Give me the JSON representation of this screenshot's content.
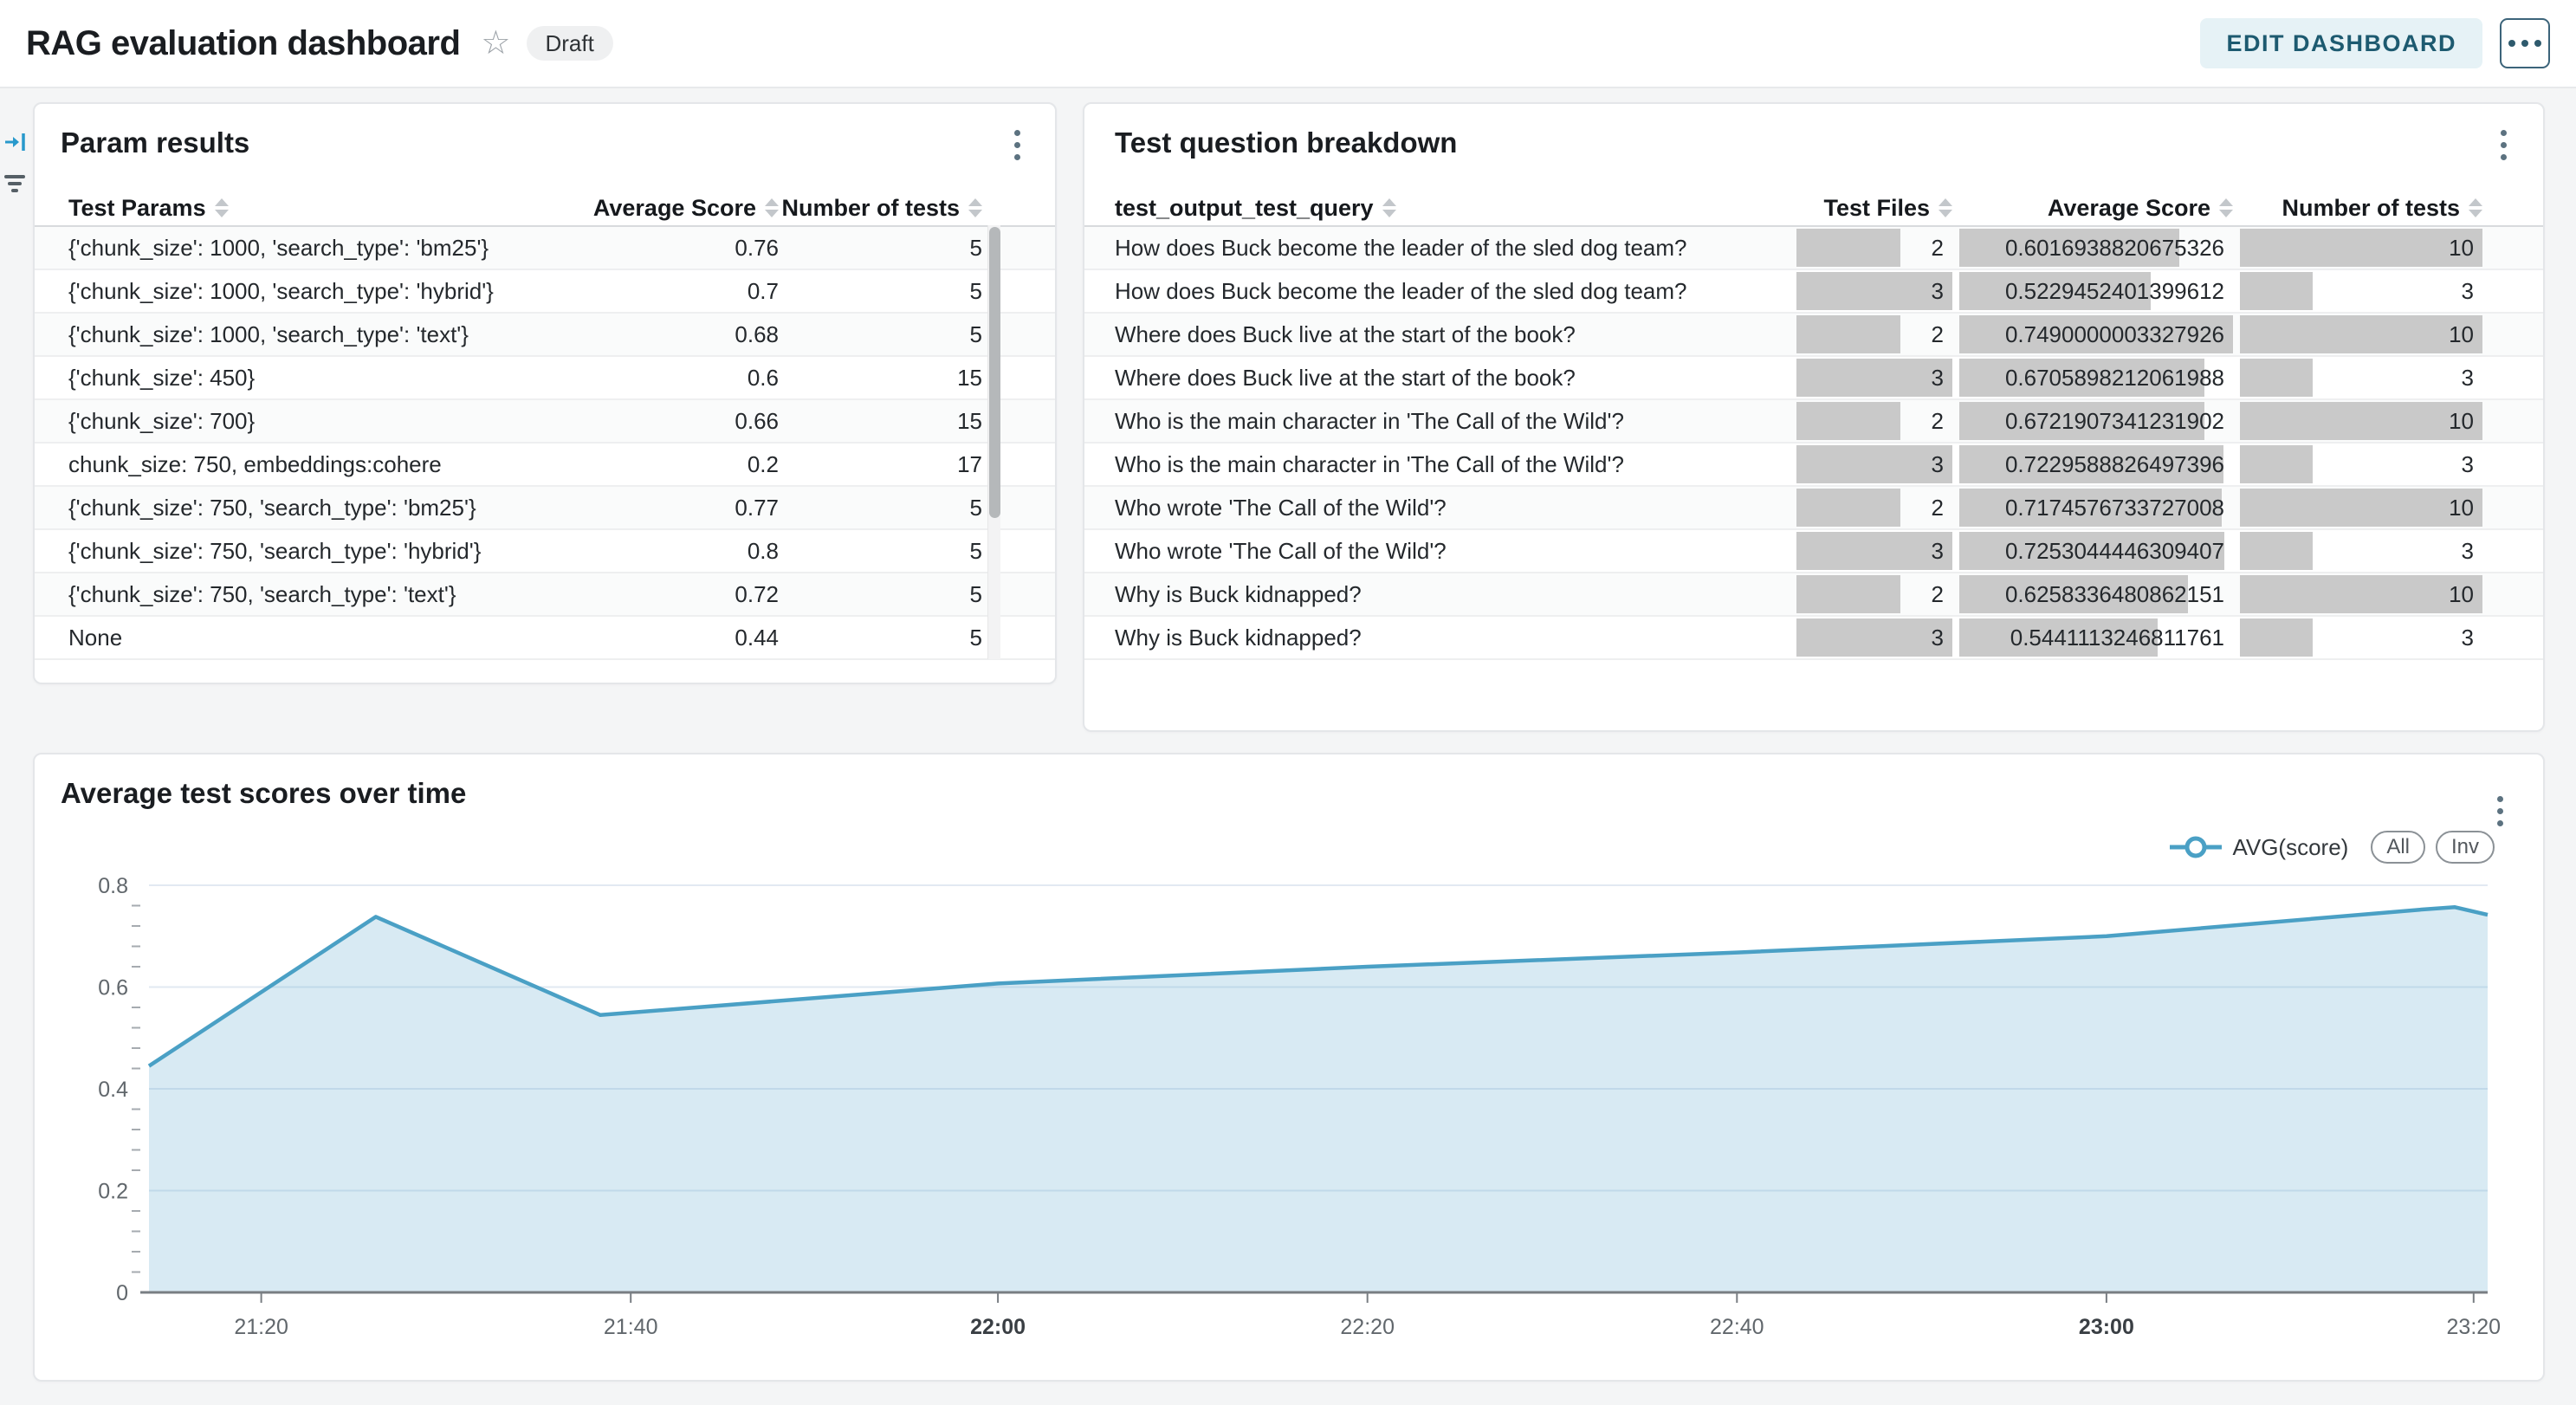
{
  "header": {
    "title": "RAG evaluation dashboard",
    "badge": "Draft",
    "edit_button": "EDIT DASHBOARD"
  },
  "param_results": {
    "title": "Param results",
    "columns": [
      "Test Params",
      "Average Score",
      "Number of tests"
    ],
    "rows": [
      [
        "{'chunk_size': 1000, 'search_type': 'bm25'}",
        "0.76",
        "5"
      ],
      [
        "{'chunk_size': 1000, 'search_type': 'hybrid'}",
        "0.7",
        "5"
      ],
      [
        "{'chunk_size': 1000, 'search_type': 'text'}",
        "0.68",
        "5"
      ],
      [
        "{'chunk_size': 450}",
        "0.6",
        "15"
      ],
      [
        "{'chunk_size': 700}",
        "0.66",
        "15"
      ],
      [
        "chunk_size: 750, embeddings:cohere",
        "0.2",
        "17"
      ],
      [
        "{'chunk_size': 750, 'search_type': 'bm25'}",
        "0.77",
        "5"
      ],
      [
        "{'chunk_size': 750, 'search_type': 'hybrid'}",
        "0.8",
        "5"
      ],
      [
        "{'chunk_size': 750, 'search_type': 'text'}",
        "0.72",
        "5"
      ],
      [
        "None",
        "0.44",
        "5"
      ]
    ]
  },
  "question_breakdown": {
    "title": "Test question breakdown",
    "columns": [
      "test_output_test_query",
      "Test Files",
      "Average Score",
      "Number of tests"
    ],
    "bar_color": "#c9c9c9",
    "rows": [
      [
        "How does Buck become the leader of the sled dog team?",
        "2",
        "0.6016938820675326",
        "10"
      ],
      [
        "How does Buck become the leader of the sled dog team?",
        "3",
        "0.5229452401399612",
        "3"
      ],
      [
        "Where does Buck live at the start of the book?",
        "2",
        "0.7490000003327926",
        "10"
      ],
      [
        "Where does Buck live at the start of the book?",
        "3",
        "0.6705898212061988",
        "3"
      ],
      [
        "Who is the main character in 'The Call of the Wild'?",
        "2",
        "0.6721907341231902",
        "10"
      ],
      [
        "Who is the main character in 'The Call of the Wild'?",
        "3",
        "0.7229588826497396",
        "3"
      ],
      [
        "Who wrote 'The Call of the Wild'?",
        "2",
        "0.7174576733727008",
        "10"
      ],
      [
        "Who wrote 'The Call of the Wild'?",
        "3",
        "0.7253044446309407",
        "3"
      ],
      [
        "Why is Buck kidnapped?",
        "2",
        "0.6258336480862151",
        "10"
      ],
      [
        "Why is Buck kidnapped?",
        "3",
        "0.5441113246811761",
        "3"
      ]
    ]
  },
  "chart_data": {
    "type": "area",
    "title": "Average test scores over time",
    "legend": {
      "series_label": "AVG(score)",
      "buttons": [
        "All",
        "Inv"
      ]
    },
    "line_color": "#4aa0c5",
    "fill_color": "rgba(77,160,200,0.22)",
    "ylim": [
      0,
      0.8
    ],
    "y_ticks": [
      0,
      0.2,
      0.4,
      0.6,
      0.8
    ],
    "y_minor_step": 0.04,
    "x_ticks": [
      {
        "label": "21:20",
        "f": 0.048,
        "bold": false
      },
      {
        "label": "21:40",
        "f": 0.206,
        "bold": false
      },
      {
        "label": "22:00",
        "f": 0.363,
        "bold": true
      },
      {
        "label": "22:20",
        "f": 0.521,
        "bold": false
      },
      {
        "label": "22:40",
        "f": 0.679,
        "bold": false
      },
      {
        "label": "23:00",
        "f": 0.837,
        "bold": true
      },
      {
        "label": "23:20",
        "f": 0.994,
        "bold": false
      }
    ],
    "series": [
      {
        "name": "AVG(score)",
        "points": [
          {
            "t": "21:14",
            "f": 0.0,
            "v": 0.445
          },
          {
            "t": "21:26",
            "f": 0.097,
            "v": 0.738
          },
          {
            "t": "21:38",
            "f": 0.193,
            "v": 0.545
          },
          {
            "t": "22:00",
            "f": 0.363,
            "v": 0.607
          },
          {
            "t": "22:20",
            "f": 0.521,
            "v": 0.64
          },
          {
            "t": "22:40",
            "f": 0.679,
            "v": 0.668
          },
          {
            "t": "23:00",
            "f": 0.837,
            "v": 0.7
          },
          {
            "t": "23:17",
            "f": 0.971,
            "v": 0.752
          },
          {
            "t": "23:19",
            "f": 0.986,
            "v": 0.757
          },
          {
            "t": "23:21",
            "f": 1.0,
            "v": 0.742
          }
        ]
      }
    ]
  }
}
